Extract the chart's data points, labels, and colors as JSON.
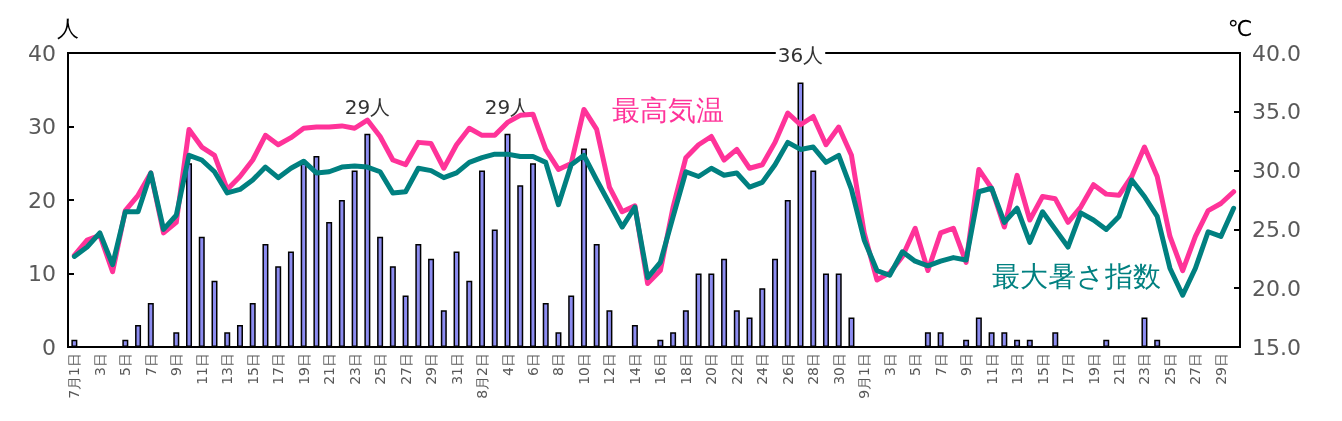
{
  "chart_data": {
    "type": "bar",
    "ylabel": "人",
    "y2label": "℃",
    "categories": [
      "7月1日",
      null,
      "3日",
      null,
      "5日",
      null,
      "7日",
      null,
      "9日",
      null,
      "11日",
      null,
      "13日",
      null,
      "15日",
      null,
      "17日",
      null,
      "19日",
      null,
      "21日",
      null,
      "23日",
      null,
      "25日",
      null,
      "27日",
      null,
      "29日",
      null,
      "31日",
      null,
      "8月2日",
      null,
      "4日",
      null,
      "6日",
      null,
      "8日",
      null,
      "10日",
      null,
      "12日",
      null,
      "14日",
      null,
      "16日",
      null,
      "18日",
      null,
      "20日",
      null,
      "22日",
      null,
      "24日",
      null,
      "26日",
      null,
      "28日",
      null,
      "30日",
      null,
      "9月1日",
      null,
      "3日",
      null,
      "5日",
      null,
      "7日",
      null,
      "9日",
      null,
      "11日",
      null,
      "13日",
      null,
      "15日",
      null,
      "17日",
      null,
      "19日",
      null,
      "21日",
      null,
      "23日",
      null,
      "25日",
      null,
      "27日",
      null,
      "29日",
      null
    ],
    "series": [
      {
        "type": "bar",
        "color": "#8c8cf0",
        "values": [
          1,
          0,
          0,
          0,
          1,
          3,
          6,
          0,
          2,
          25,
          15,
          9,
          2,
          3,
          6,
          14,
          11,
          13,
          25,
          26,
          17,
          20,
          24,
          29,
          15,
          11,
          7,
          14,
          12,
          5,
          13,
          9,
          24,
          16,
          29,
          22,
          25,
          6,
          2,
          7,
          27,
          14,
          5,
          0,
          3,
          0,
          1,
          2,
          5,
          10,
          10,
          12,
          5,
          4,
          8,
          12,
          20,
          36,
          24,
          10,
          10,
          4,
          0,
          0,
          0,
          0,
          0,
          2,
          2,
          0,
          1,
          4,
          2,
          2,
          1,
          1,
          0,
          2,
          0,
          0,
          0,
          1,
          0,
          0,
          4,
          1,
          0,
          0,
          0,
          0,
          0,
          0
        ],
        "value_labels": [
          null,
          null,
          null,
          null,
          null,
          null,
          null,
          null,
          null,
          null,
          null,
          null,
          null,
          null,
          null,
          null,
          null,
          null,
          null,
          null,
          null,
          null,
          null,
          "29人",
          null,
          null,
          null,
          null,
          null,
          null,
          null,
          null,
          null,
          null,
          "29人",
          null,
          null,
          null,
          null,
          null,
          null,
          null,
          null,
          null,
          null,
          null,
          null,
          null,
          null,
          null,
          null,
          null,
          null,
          null,
          null,
          null,
          null,
          "36人",
          null,
          null,
          null,
          null,
          null,
          null,
          null,
          null,
          null,
          null,
          null,
          null,
          null,
          null,
          null,
          null,
          null,
          null,
          null,
          null,
          null,
          null,
          null,
          null,
          null,
          null,
          null,
          null,
          null,
          null,
          null,
          null,
          null,
          null
        ]
      },
      {
        "type": "line",
        "name": "最高気温",
        "color": "#ff3399",
        "axis": "y2",
        "values": [
          22.8,
          24.1,
          24.5,
          21.4,
          26.6,
          27.9,
          29.8,
          24.7,
          25.6,
          33.5,
          32.0,
          31.3,
          28.4,
          29.5,
          30.9,
          33.0,
          32.2,
          32.8,
          33.6,
          33.7,
          33.7,
          33.8,
          33.6,
          34.3,
          32.9,
          30.9,
          30.5,
          32.4,
          32.3,
          30.2,
          32.2,
          33.6,
          33.0,
          33.0,
          34.1,
          34.7,
          34.8,
          31.8,
          30.1,
          30.6,
          35.2,
          33.5,
          28.6,
          26.5,
          27.0,
          20.4,
          21.5,
          26.9,
          31.1,
          32.2,
          32.9,
          30.9,
          31.8,
          30.2,
          30.5,
          32.4,
          34.9,
          33.9,
          34.6,
          32.2,
          33.7,
          31.3,
          24.7,
          20.7,
          21.3,
          22.7,
          25.1,
          21.5,
          24.7,
          25.1,
          22.2,
          30.1,
          28.5,
          25.2,
          29.6,
          25.8,
          27.8,
          27.6,
          25.6,
          26.9,
          28.8,
          28.0,
          27.9,
          29.5,
          32.0,
          29.5,
          24.4,
          21.5,
          24.4,
          26.6,
          27.2,
          28.2
        ]
      },
      {
        "type": "line",
        "name": "最大暑さ指数",
        "color": "#008080",
        "axis": "y2",
        "values": [
          22.7,
          23.5,
          24.7,
          22.0,
          26.5,
          26.5,
          29.8,
          25.0,
          26.2,
          31.3,
          30.9,
          29.9,
          28.1,
          28.4,
          29.2,
          30.3,
          29.4,
          30.2,
          30.8,
          29.8,
          29.9,
          30.3,
          30.4,
          30.3,
          29.9,
          28.1,
          28.2,
          30.2,
          30.0,
          29.4,
          29.8,
          30.7,
          31.1,
          31.4,
          31.4,
          31.2,
          31.2,
          30.7,
          27.1,
          30.5,
          31.3,
          29.2,
          27.2,
          25.2,
          26.9,
          20.9,
          22.2,
          26.1,
          29.9,
          29.5,
          30.2,
          29.6,
          29.8,
          28.6,
          29.0,
          30.5,
          32.4,
          31.8,
          32.0,
          30.7,
          31.3,
          28.4,
          24.1,
          21.5,
          21.1,
          23.1,
          22.3,
          21.9,
          22.3,
          22.6,
          22.4,
          28.2,
          28.5,
          25.6,
          26.8,
          23.9,
          26.5,
          25.0,
          23.5,
          26.4,
          25.8,
          25.0,
          26.1,
          29.2,
          27.8,
          26.1,
          21.7,
          19.4,
          21.7,
          24.8,
          24.4,
          26.8
        ]
      }
    ],
    "ylim": [
      0,
      40
    ],
    "yticks": [
      0,
      10,
      20,
      30,
      40
    ],
    "y2lim": [
      15,
      40
    ],
    "y2ticks": [
      {
        "value": 15,
        "label": "15.0"
      },
      {
        "value": 20,
        "label": "20.0"
      },
      {
        "value": 25,
        "label": "25.0"
      },
      {
        "value": 30,
        "label": "30.0"
      },
      {
        "value": 35,
        "label": "35.0"
      },
      {
        "value": 40,
        "label": "40.0"
      }
    ],
    "marker": "none",
    "line_style": "solid",
    "legend": false,
    "grid": false
  }
}
